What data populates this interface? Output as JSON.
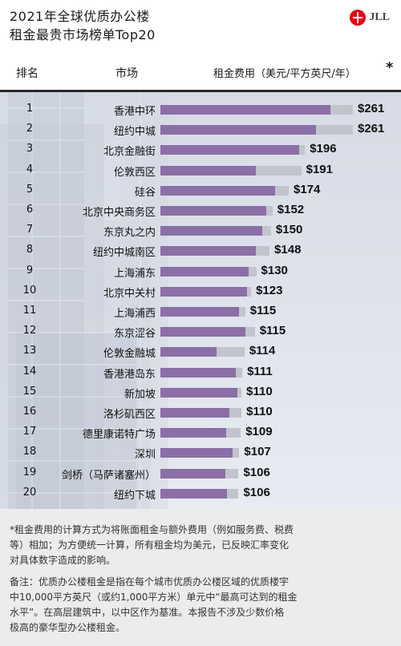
{
  "header": {
    "title_line1": "2021年全球优质办公楼",
    "title_line2": "租金最贵市场榜单Top20",
    "logo_text": "JLL"
  },
  "columns": {
    "rank": "排名",
    "market": "市场",
    "rent": "租金费用（美元/平方英尺/年）",
    "star": "*"
  },
  "colors": {
    "bar_primary": "#8b6fa6",
    "bar_secondary": "#c2c3cc",
    "brand_red": "#e30613"
  },
  "chart_data": {
    "type": "bar",
    "orientation": "horizontal",
    "title": "2021年全球优质办公楼租金最贵市场榜单Top20",
    "ylabel": "租金费用（美元/平方英尺/年）",
    "rows": [
      {
        "rank": "1",
        "market": "香港中环",
        "value": 261,
        "label": "$261",
        "secondary": 231
      },
      {
        "rank": "2",
        "market": "纽约中城",
        "value": 261,
        "label": "$261",
        "secondary": 211
      },
      {
        "rank": "3",
        "market": "北京金融街",
        "value": 196,
        "label": "$196",
        "secondary": 188
      },
      {
        "rank": "4",
        "market": "伦敦西区",
        "value": 191,
        "label": "$191",
        "secondary": 129
      },
      {
        "rank": "5",
        "market": "硅谷",
        "value": 174,
        "label": "$174",
        "secondary": 156
      },
      {
        "rank": "6",
        "market": "北京中央商务区",
        "value": 152,
        "label": "$152",
        "secondary": 144
      },
      {
        "rank": "7",
        "market": "东京丸之内",
        "value": 150,
        "label": "$150",
        "secondary": 138
      },
      {
        "rank": "8",
        "market": "纽约中城南区",
        "value": 148,
        "label": "$148",
        "secondary": 129
      },
      {
        "rank": "9",
        "market": "上海浦东",
        "value": 130,
        "label": "$130",
        "secondary": 120
      },
      {
        "rank": "10",
        "market": "北京中关村",
        "value": 123,
        "label": "$123",
        "secondary": 117
      },
      {
        "rank": "11",
        "market": "上海浦西",
        "value": 115,
        "label": "$115",
        "secondary": 107
      },
      {
        "rank": "12",
        "market": "东京涩谷",
        "value": 115,
        "label": "$115",
        "secondary": 128
      },
      {
        "rank": "13",
        "market": "伦敦金融城",
        "value": 114,
        "label": "$114",
        "secondary": 76
      },
      {
        "rank": "14",
        "market": "香港港岛东",
        "value": 111,
        "label": "$111",
        "secondary": 102
      },
      {
        "rank": "15",
        "market": "新加坡",
        "value": 110,
        "label": "$110",
        "secondary": 104
      },
      {
        "rank": "16",
        "market": "洛杉矶西区",
        "value": 110,
        "label": "$110",
        "secondary": 93
      },
      {
        "rank": "17",
        "market": "德里康诺特广场",
        "value": 109,
        "label": "$109",
        "secondary": 89
      },
      {
        "rank": "18",
        "market": "深圳",
        "value": 107,
        "label": "$107",
        "secondary": 98
      },
      {
        "rank": "19",
        "market": "剑桥（马萨诸塞州）",
        "value": 106,
        "label": "$106",
        "secondary": 88
      },
      {
        "rank": "20",
        "market": "纽约下城",
        "value": 106,
        "label": "$106",
        "secondary": 90
      }
    ],
    "xlim": [
      0,
      261
    ]
  },
  "footnotes": {
    "note1_line1": "*租金费用的计算方式为将账面租金与额外费用（例如服务费、税费",
    "note1_line2": "等）相加；为方便统一计算，所有租金均为美元，已反映汇率变化",
    "note1_line3": "对具体数字造成的影响。",
    "note2_line1": "备注：优质办公楼租金是指在每个城市优质办公楼区域的优质楼宇",
    "note2_line2": "中10,000平方英尺（或约1,000平方米）单元中“最高可达到的租金",
    "note2_line3": "水平”。在高层建筑中，以中区作为基准。本报告不涉及少数价格",
    "note2_line4": "极高的豪华型办公楼租金。"
  }
}
